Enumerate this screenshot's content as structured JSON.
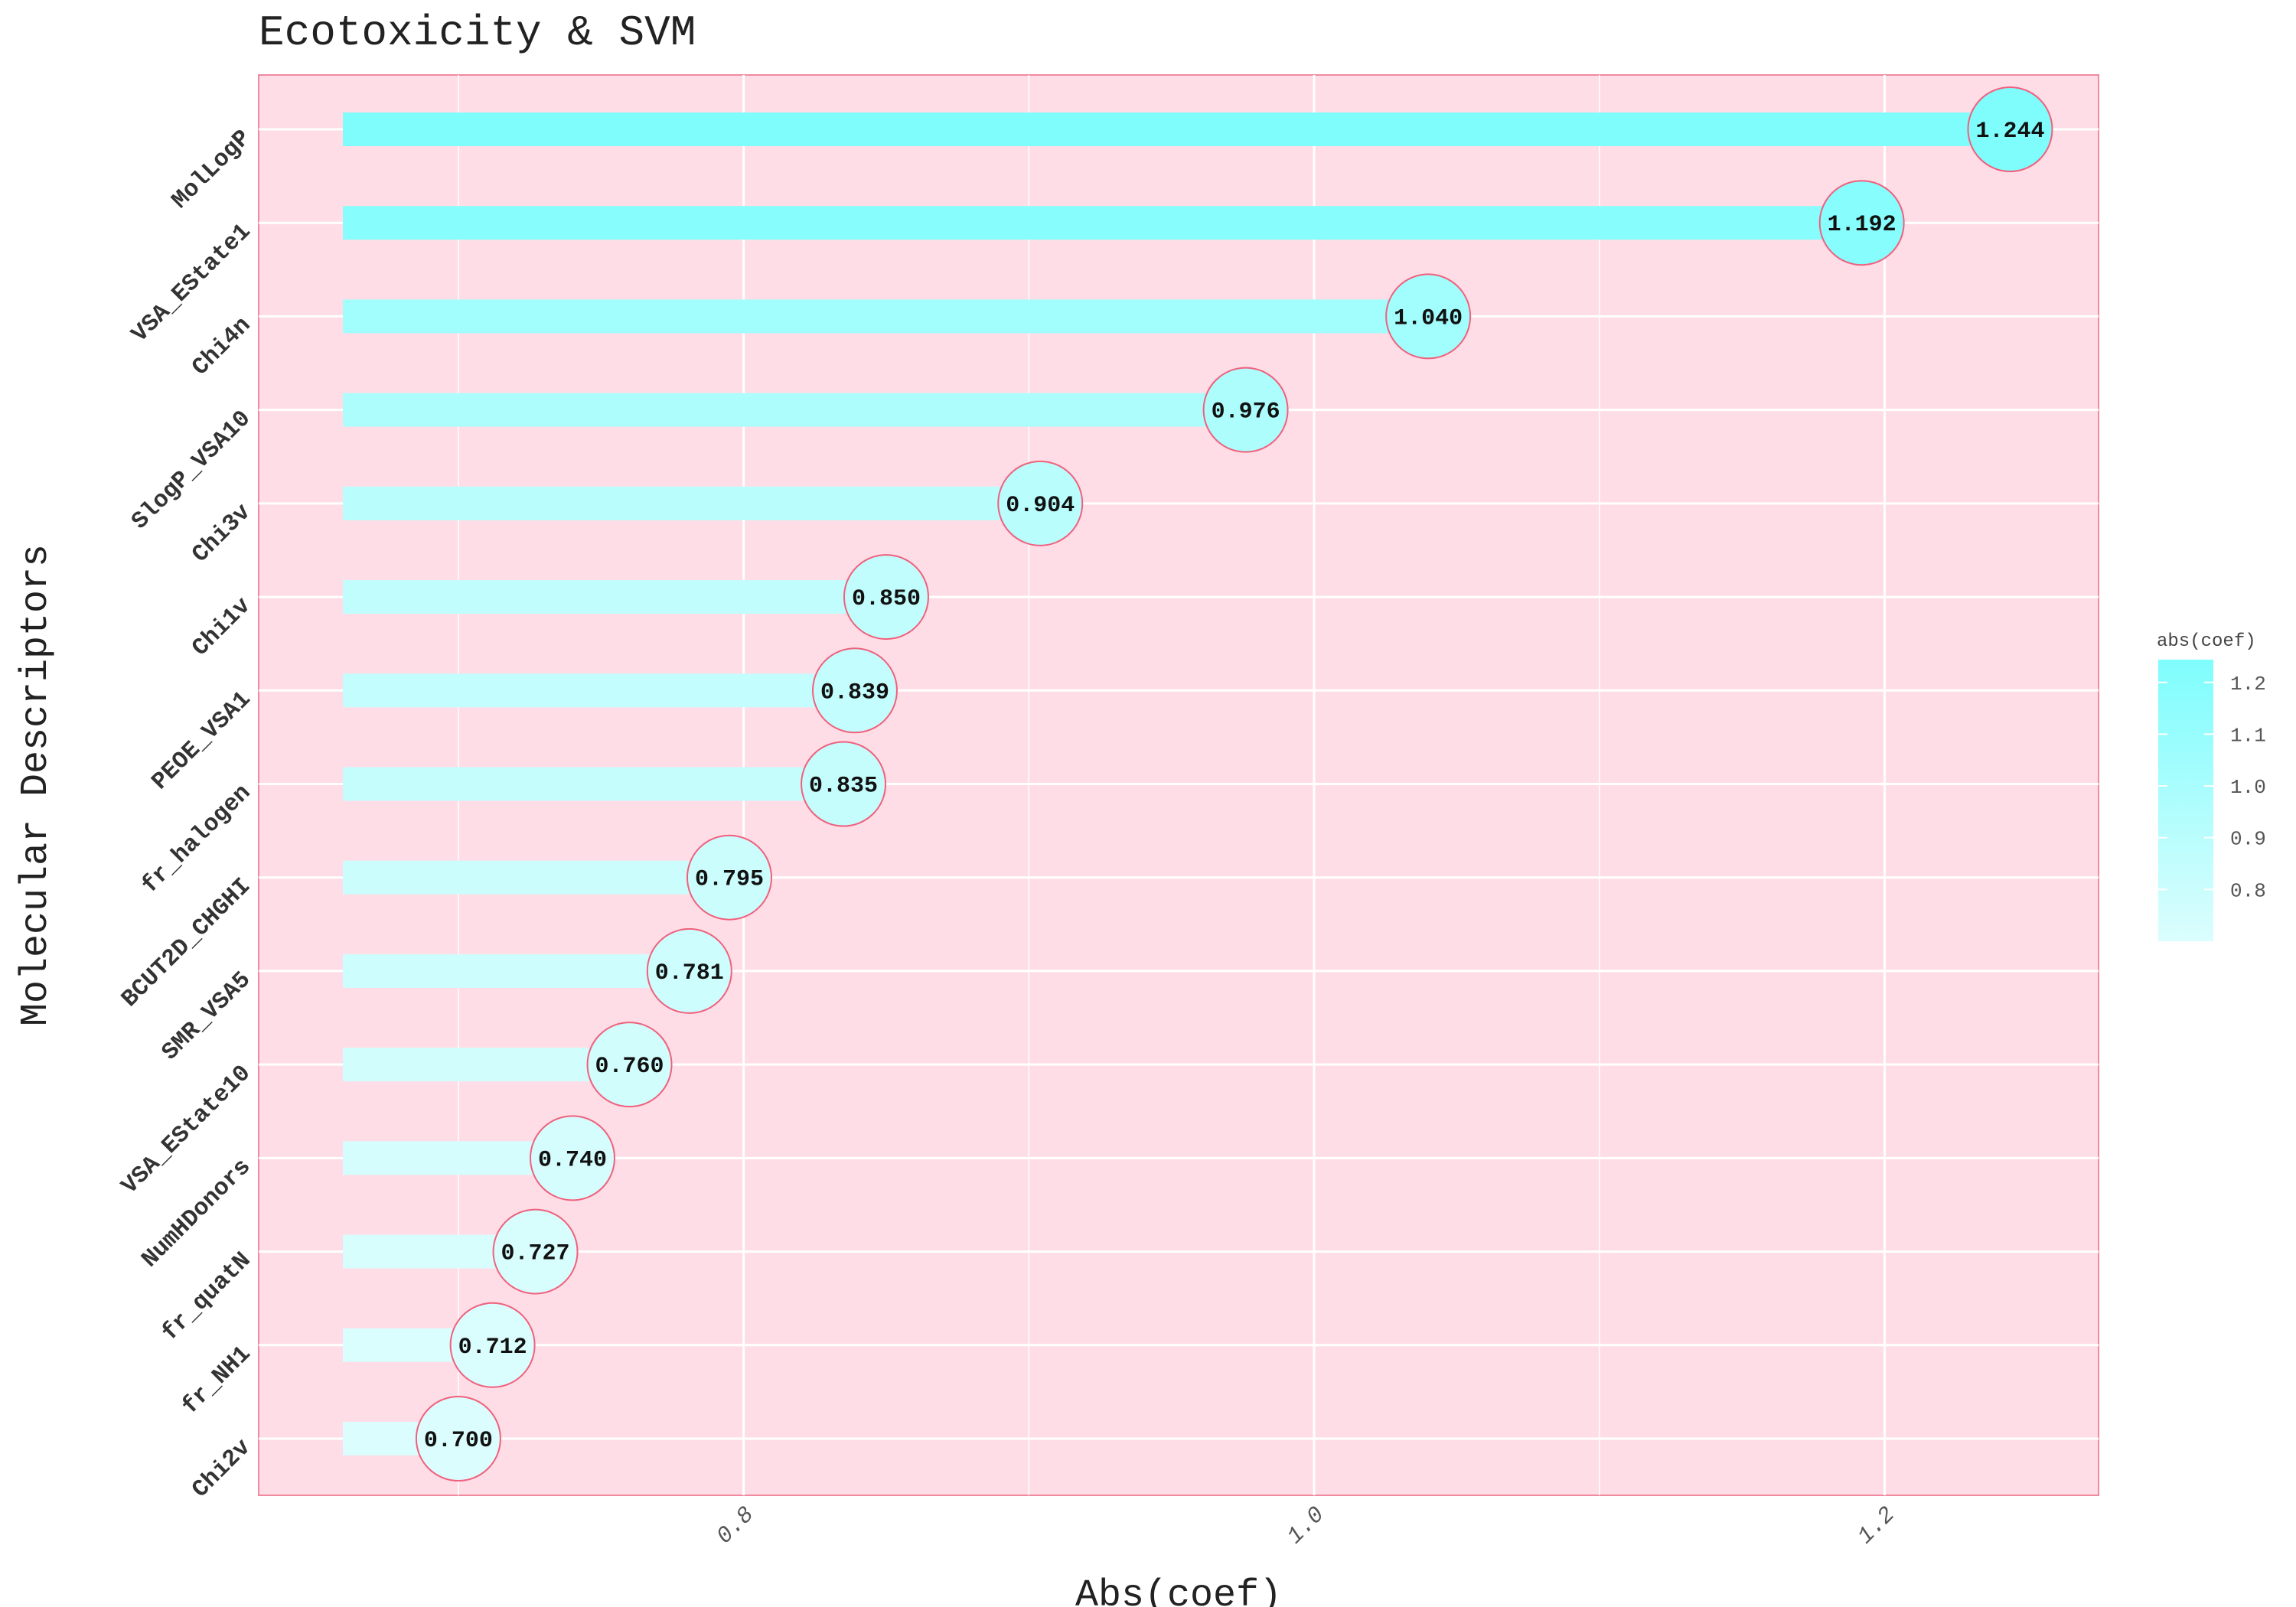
{
  "chart_data": {
    "type": "bar",
    "orientation": "horizontal",
    "title": "Ecotoxicity & SVM",
    "xlabel": "Abs(coef)",
    "ylabel": "Molecular Descriptors",
    "categories": [
      "MolLogP",
      "VSA_EState1",
      "Chi4n",
      "SlogP_VSA10",
      "Chi3v",
      "Chi1v",
      "PEOE_VSA1",
      "fr_halogen",
      "BCUT2D_CHGHI",
      "SMR_VSA5",
      "VSA_EState10",
      "NumHDonors",
      "fr_quatN",
      "fr_NH1",
      "Chi2v"
    ],
    "values": [
      1.244,
      1.192,
      1.04,
      0.976,
      0.904,
      0.85,
      0.839,
      0.835,
      0.795,
      0.781,
      0.76,
      0.74,
      0.727,
      0.712,
      0.7
    ],
    "data_labels": [
      "1.244",
      "1.192",
      "1.040",
      "0.976",
      "0.904",
      "0.850",
      "0.839",
      "0.835",
      "0.795",
      "0.781",
      "0.760",
      "0.740",
      "0.727",
      "0.712",
      "0.700"
    ],
    "xlim": [
      0.63,
      1.275
    ],
    "xticks": [
      0.8,
      1.0,
      1.2
    ],
    "xtick_labels": [
      "0.8",
      "1.0",
      "1.2"
    ],
    "grid": true,
    "legend": {
      "title": "abs(coef)",
      "position": "right",
      "type": "colorbar",
      "ticks": [
        1.2,
        1.1,
        1.0,
        0.9,
        0.8
      ],
      "tick_labels": [
        "1.2",
        "1.1",
        "1.0",
        "0.9",
        "0.8"
      ],
      "range": [
        0.7,
        1.244
      ]
    },
    "colors": {
      "panel_background": "#ffdde6",
      "panel_border": "#f08aa0",
      "gridline": "#ffffff",
      "bar_low": "#dcfdfd",
      "bar_high": "#7ffdfd",
      "marker_border": "#f0607c"
    }
  }
}
